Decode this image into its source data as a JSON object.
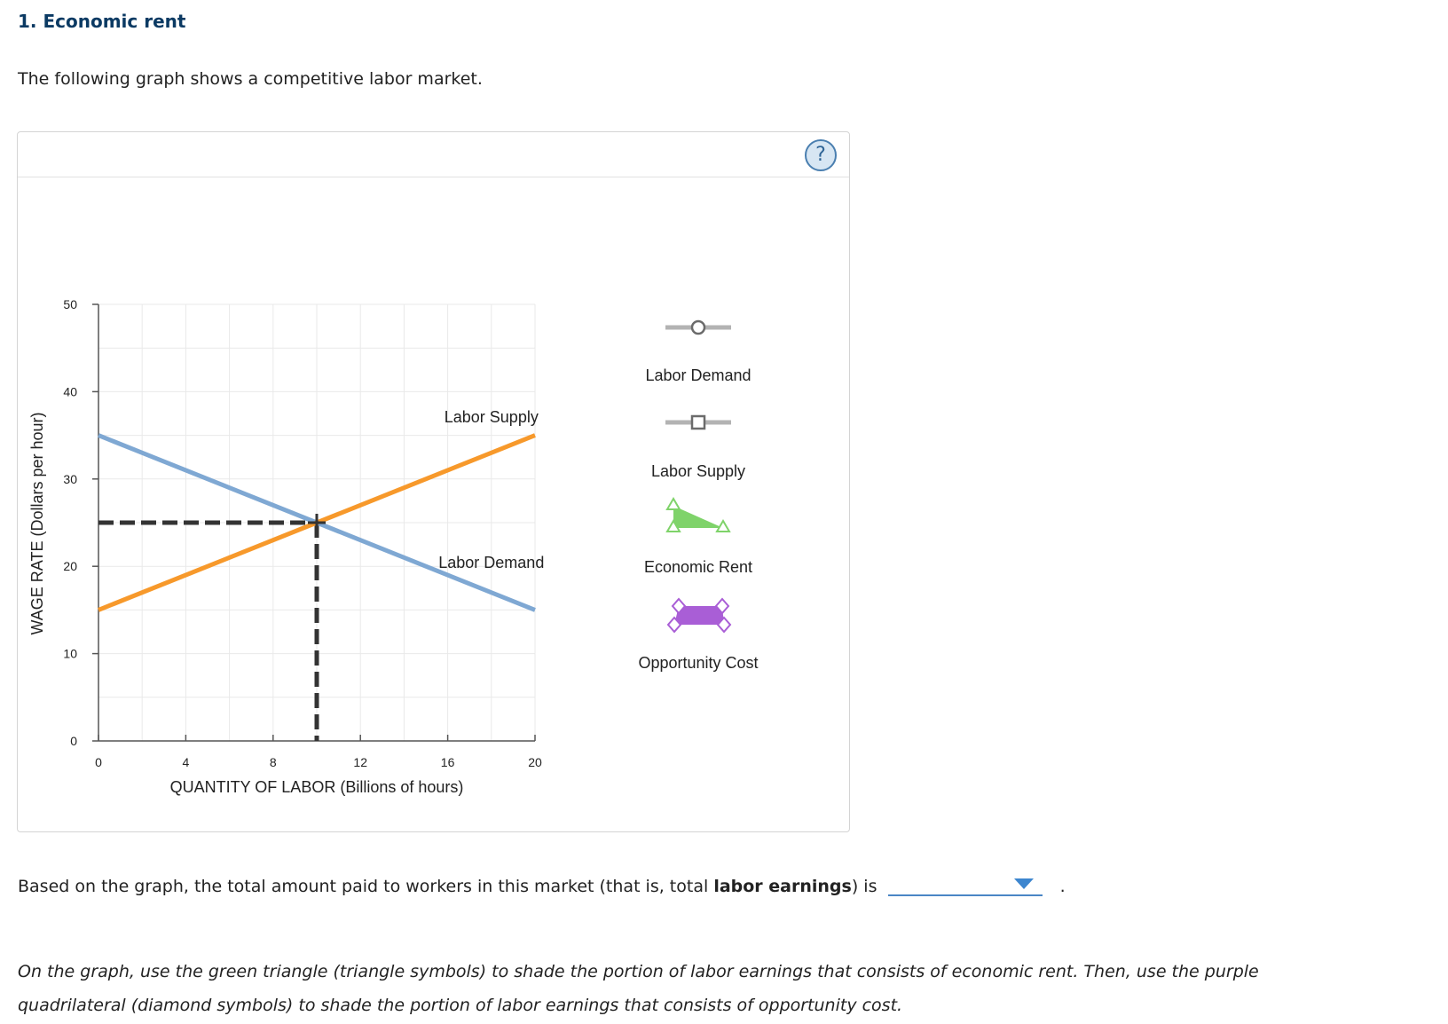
{
  "title": "1. Economic rent",
  "intro": "The following graph shows a competitive labor market.",
  "help_label": "?",
  "chart_data": {
    "type": "line",
    "xlabel": "QUANTITY OF LABOR (Billions of hours)",
    "ylabel": "WAGE RATE (Dollars per hour)",
    "xlim": [
      0,
      20
    ],
    "ylim": [
      0,
      50
    ],
    "x_ticks": [
      "0",
      "4",
      "8",
      "12",
      "16",
      "20"
    ],
    "y_ticks": [
      "0",
      "10",
      "20",
      "30",
      "40",
      "50"
    ],
    "grid": true,
    "series": [
      {
        "name": "Labor Demand",
        "color": "#7fa8d3",
        "points": [
          [
            0,
            35
          ],
          [
            20,
            15
          ]
        ]
      },
      {
        "name": "Labor Supply",
        "color": "#f7992b",
        "points": [
          [
            0,
            15
          ],
          [
            20,
            35
          ]
        ]
      }
    ],
    "equilibrium": {
      "x": 10,
      "y": 25
    },
    "curve_labels": {
      "supply": "Labor Supply",
      "demand": "Labor Demand"
    }
  },
  "legend": [
    {
      "label": "Labor Demand",
      "icon": "circle-point-tool"
    },
    {
      "label": "Labor Supply",
      "icon": "square-point-tool"
    },
    {
      "label": "Economic Rent",
      "icon": "green-triangle-tool"
    },
    {
      "label": "Opportunity Cost",
      "icon": "purple-quadrilateral-tool"
    }
  ],
  "colors": {
    "demand": "#7fa8d3",
    "supply": "#f7992b",
    "rent": "#7fd36a",
    "opportunity": "#a95ed6"
  },
  "question": {
    "pre": "Based on the graph, the total amount paid to workers in this market (that is, total ",
    "bold": "labor earnings",
    "post": ") is",
    "dropdown_value": "",
    "end": "."
  },
  "instructions": "On the graph, use the green triangle (triangle symbols) to shade the portion of labor earnings that consists of economic rent. Then, use the purple quadrilateral (diamond symbols) to shade the portion of labor earnings that consists of opportunity cost."
}
